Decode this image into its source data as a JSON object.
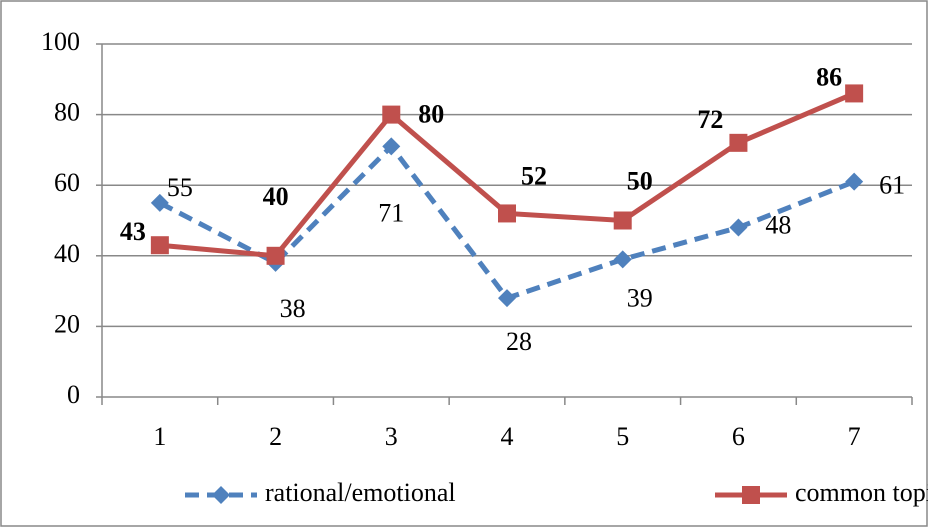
{
  "chart_data": {
    "type": "line",
    "categories": [
      "1",
      "2",
      "3",
      "4",
      "5",
      "6",
      "7"
    ],
    "series": [
      {
        "name": "rational/emotional",
        "color": "#4f81bd",
        "values": [
          55,
          38,
          71,
          28,
          39,
          48,
          61
        ]
      },
      {
        "name": "common topics",
        "color": "#c0504d",
        "values": [
          43,
          40,
          80,
          52,
          50,
          72,
          86
        ]
      }
    ],
    "ylim": [
      0,
      100
    ],
    "yticks": [
      0,
      20,
      40,
      60,
      80,
      100
    ],
    "grid": true,
    "legend": "bottom"
  }
}
